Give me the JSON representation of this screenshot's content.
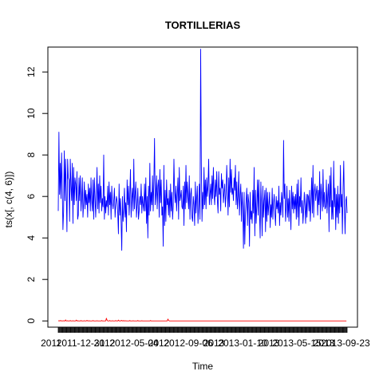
{
  "chart_data": {
    "type": "line",
    "title": "TORTILLERIAS",
    "xlabel": "Time",
    "ylabel": "ts(x[, c(4, 6)])",
    "ylim": [
      -0.3,
      13.2
    ],
    "yticks": [
      0,
      2,
      4,
      6,
      8,
      10,
      12
    ],
    "xticklabels": [
      "2011-12-31",
      "2012-05-04",
      "2012-09-06",
      "2013-01-10",
      "2013-05-15",
      "2013-09-23",
      "2011",
      "2012",
      "2012",
      "2013",
      "2013",
      "2013"
    ],
    "grid": false,
    "legend": "none",
    "series": [
      {
        "color": "#0000ff",
        "values": [
          5.3,
          9.1,
          6.1,
          7.6,
          5.9,
          8.1,
          6.4,
          4.4,
          5.3,
          8.2,
          5.8,
          7.8,
          6.2,
          4.3,
          7.8,
          6.9,
          6.8,
          4.8,
          7.8,
          6.5,
          5.8,
          7.6,
          4.7,
          7.4,
          5.6,
          6.9,
          6.6,
          5.8,
          7.2,
          4.9,
          5.1,
          6.9,
          5.8,
          7.0,
          5.3,
          5.9,
          6.9,
          5.0,
          5.7,
          6.7,
          5.4,
          6.3,
          5.6,
          6.1,
          5.0,
          6.6,
          5.7,
          6.4,
          5.3,
          6.9,
          5.8,
          5.3,
          6.8,
          4.9,
          6.9,
          6.0,
          5.0,
          6.0,
          7.4,
          5.4,
          6.6,
          5.2,
          7.0,
          5.7,
          6.5,
          5.3,
          5.9,
          5.5,
          8.0,
          4.9,
          6.0,
          5.2,
          5.8,
          5.5,
          6.5,
          5.1,
          6.7,
          5.6,
          6.2,
          4.9,
          6.5,
          5.7,
          5.4,
          5.8,
          6.4,
          5.0,
          5.6,
          6.0,
          5.8,
          5.2,
          4.2,
          6.6,
          5.1,
          5.9,
          4.8,
          3.4,
          6.0,
          4.8,
          5.4,
          6.4,
          5.0,
          5.7,
          4.3,
          6.8,
          5.6,
          6.5,
          5.1,
          6.0,
          7.3,
          5.0,
          5.9,
          6.4,
          5.3,
          7.8,
          5.4,
          6.1,
          6.7,
          5.0,
          5.6,
          6.4,
          4.9,
          5.3,
          6.0,
          5.6,
          6.6,
          5.2,
          6.0,
          5.6,
          5.3,
          6.6,
          5.3,
          6.9,
          4.7,
          6.0,
          4.0,
          6.5,
          5.1,
          7.6,
          5.3,
          6.2,
          5.6,
          7.0,
          5.3,
          6.7,
          8.8,
          5.6,
          6.1,
          7.0,
          5.4,
          6.5,
          6.8,
          5.0,
          7.3,
          5.7,
          6.8,
          5.1,
          5.5,
          3.6,
          7.5,
          4.6,
          6.3,
          4.8,
          6.8,
          5.6,
          5.9,
          5.1,
          6.3,
          5.0,
          6.6,
          5.3,
          6.2,
          4.9,
          5.6,
          7.8,
          6.2,
          5.7,
          6.5,
          5.3,
          6.1,
          6.9,
          4.9,
          7.4,
          5.8,
          6.0,
          6.3,
          5.5,
          5.4,
          6.5,
          4.6,
          6.7,
          5.4,
          7.5,
          5.7,
          6.7,
          6.0,
          5.4,
          7.0,
          4.9,
          6.1,
          6.4,
          5.0,
          4.8,
          6.0,
          5.6,
          4.6,
          6.7,
          5.2,
          5.9,
          6.5,
          4.7,
          5.5,
          6.6,
          4.9,
          13.1,
          7.6,
          4.8,
          6.2,
          5.4,
          7.4,
          5.6,
          6.8,
          5.4,
          6.9,
          6.0,
          6.5,
          7.8,
          5.6,
          6.1,
          6.6,
          5.6,
          7.0,
          5.9,
          7.4,
          6.1,
          5.6,
          6.8,
          6.0,
          7.2,
          5.8,
          5.2,
          7.2,
          6.1,
          6.4,
          5.3,
          7.1,
          6.4,
          6.8,
          5.7,
          6.2,
          6.6,
          5.5,
          6.1,
          7.5,
          6.4,
          5.1,
          6.9,
          5.5,
          7.8,
          6.2,
          7.3,
          6.1,
          6.4,
          5.8,
          6.9,
          6.3,
          7.5,
          5.6,
          6.7,
          5.4,
          6.0,
          7.2,
          5.1,
          6.1,
          6.6,
          4.8,
          6.2,
          5.5,
          3.5,
          6.2,
          3.7,
          5.2,
          5.8,
          6.4,
          4.6,
          6.1,
          5.7,
          3.6,
          6.2,
          4.9,
          5.3,
          4.7,
          6.3,
          5.2,
          7.4,
          4.1,
          6.3,
          4.7,
          5.6,
          6.8,
          5.1,
          6.8,
          5.2,
          4.0,
          6.7,
          5.6,
          4.1,
          6.5,
          5.0,
          5.8,
          6.3,
          4.3,
          6.4,
          4.8,
          6.2,
          5.1,
          5.6,
          6.2,
          4.5,
          5.6,
          5.0,
          6.4,
          4.9,
          5.7,
          6.1,
          5.2,
          4.6,
          6.0,
          5.4,
          5.8,
          5.2,
          6.5,
          4.6,
          5.7,
          5.1,
          6.2,
          5.8,
          5.0,
          8.7,
          5.9,
          6.6,
          4.8,
          5.5,
          6.5,
          5.0,
          5.9,
          4.8,
          6.3,
          5.4,
          4.4,
          6.5,
          5.4,
          6.2,
          5.2,
          6.0,
          5.4,
          6.1,
          4.9,
          6.6,
          5.0,
          6.8,
          4.6,
          6.0,
          5.5,
          6.9,
          5.2,
          5.8,
          4.7,
          5.3,
          6.2,
          5.5,
          4.7,
          6.1,
          5.0,
          6.1,
          6.0,
          5.3,
          6.3,
          4.8,
          5.7,
          6.9,
          5.2,
          7.5,
          5.0,
          6.2,
          6.6,
          5.8,
          6.2,
          6.5,
          5.1,
          6.3,
          5.6,
          7.2,
          4.9,
          6.6,
          6.1,
          5.3,
          7.3,
          5.5,
          6.2,
          5.4,
          5.5,
          6.8,
          5.2,
          6.0,
          6.6,
          4.3,
          7.0,
          5.5,
          7.4,
          4.9,
          5.8,
          4.9,
          7.7,
          5.5,
          6.4,
          4.4,
          6.1,
          5.0,
          6.5,
          4.7,
          6.1,
          5.2,
          7.5,
          5.5,
          6.1,
          4.2,
          6.4,
          7.7,
          5.5,
          4.2,
          5.8,
          6.0,
          5.2
        ]
      },
      {
        "color": "#ff0000",
        "values": [
          0.0,
          0.01,
          0.0,
          0.02,
          0.0,
          0.01,
          0.0,
          0.0,
          0.01,
          0.0,
          0.0,
          0.05,
          0.0,
          0.0,
          0.01,
          0.0,
          0.0,
          0.0,
          0.02,
          0.0,
          0.0,
          0.0,
          0.01,
          0.0,
          0.0,
          0.0,
          0.0,
          0.04,
          0.0,
          0.01,
          0.0,
          0.0,
          0.0,
          0.0,
          0.02,
          0.0,
          0.0,
          0.0,
          0.0,
          0.01,
          0.0,
          0.0,
          0.0,
          0.03,
          0.0,
          0.0,
          0.01,
          0.0,
          0.0,
          0.0,
          0.0,
          0.0,
          0.02,
          0.0,
          0.0,
          0.0,
          0.0,
          0.0,
          0.01,
          0.0,
          0.0,
          0.0,
          0.0,
          0.0,
          0.0,
          0.02,
          0.0,
          0.0,
          0.0,
          0.0,
          0.0,
          0.0,
          0.13,
          0.03,
          0.0,
          0.0,
          0.0,
          0.02,
          0.0,
          0.0,
          0.0,
          0.01,
          0.0,
          0.0,
          0.0,
          0.0,
          0.02,
          0.0,
          0.0,
          0.0,
          0.04,
          0.0,
          0.0,
          0.01,
          0.0,
          0.03,
          0.0,
          0.0,
          0.02,
          0.0,
          0.0,
          0.01,
          0.0,
          0.0,
          0.0,
          0.0,
          0.0,
          0.02,
          0.0,
          0.0,
          0.0,
          0.0,
          0.01,
          0.0,
          0.0,
          0.0,
          0.0,
          0.0,
          0.0,
          0.02,
          0.0,
          0.0,
          0.0,
          0.0,
          0.0,
          0.01,
          0.0,
          0.0,
          0.0,
          0.0,
          0.0,
          0.0,
          0.0,
          0.0,
          0.0,
          0.0,
          0.0,
          0.0,
          0.02,
          0.0,
          0.0,
          0.0,
          0.0,
          0.0,
          0.0,
          0.0,
          0.0,
          0.0,
          0.0,
          0.0,
          0.0,
          0.0,
          0.0,
          0.0,
          0.0,
          0.0,
          0.0,
          0.0,
          0.0,
          0.0,
          0.0,
          0.0,
          0.0,
          0.0,
          0.09,
          0.03,
          0.0,
          0.0,
          0.0,
          0.0,
          0.0,
          0.0,
          0.0,
          0.0,
          0.0,
          0.0,
          0.0,
          0.0,
          0.0,
          0.0,
          0.0,
          0.0,
          0.0,
          0.0,
          0.0,
          0.0,
          0.0,
          0.0,
          0.0,
          0.0,
          0.0,
          0.0,
          0.0,
          0.0,
          0.0,
          0.0,
          0.0,
          0.0,
          0.0,
          0.0,
          0.0,
          0.0,
          0.0,
          0.0,
          0.0,
          0.0,
          0.0,
          0.0,
          0.0,
          0.0,
          0.0,
          0.0,
          0.0,
          0.0,
          0.0,
          0.0,
          0.0,
          0.0,
          0.0,
          0.0,
          0.0,
          0.0,
          0.0,
          0.0,
          0.0,
          0.0,
          0.0,
          0.0,
          0.0,
          0.0,
          0.0,
          0.0,
          0.0,
          0.0,
          0.0,
          0.0,
          0.0,
          0.0,
          0.0,
          0.0,
          0.0,
          0.0,
          0.0,
          0.0,
          0.0,
          0.0,
          0.0,
          0.0,
          0.0,
          0.0,
          0.0,
          0.0,
          0.0,
          0.0,
          0.0,
          0.0,
          0.0,
          0.0,
          0.0,
          0.0,
          0.0,
          0.0,
          0.0,
          0.0,
          0.0,
          0.0,
          0.0,
          0.0,
          0.0,
          0.0,
          0.0,
          0.0,
          0.0,
          0.0,
          0.0,
          0.0,
          0.0,
          0.0,
          0.0,
          0.0,
          0.0,
          0.0,
          0.0,
          0.0,
          0.0,
          0.0,
          0.0,
          0.0,
          0.0,
          0.0,
          0.0,
          0.0,
          0.0,
          0.0,
          0.0,
          0.0,
          0.0,
          0.0,
          0.0,
          0.0,
          0.0,
          0.0,
          0.0,
          0.0,
          0.0,
          0.0,
          0.0,
          0.0,
          0.0,
          0.0,
          0.0,
          0.0,
          0.0,
          0.0,
          0.0,
          0.0,
          0.0,
          0.0,
          0.0,
          0.0,
          0.0,
          0.0,
          0.0,
          0.0,
          0.0,
          0.0,
          0.0,
          0.0,
          0.0,
          0.0,
          0.0,
          0.0,
          0.0,
          0.0,
          0.0,
          0.0,
          0.0,
          0.0,
          0.0,
          0.0,
          0.0,
          0.0,
          0.0,
          0.0,
          0.0,
          0.0,
          0.0,
          0.0,
          0.0,
          0.0,
          0.0,
          0.0,
          0.0,
          0.0,
          0.0,
          0.0,
          0.0,
          0.0,
          0.0,
          0.0,
          0.0,
          0.0,
          0.0,
          0.0,
          0.0,
          0.0,
          0.0,
          0.0,
          0.0,
          0.0,
          0.0,
          0.0,
          0.0,
          0.0,
          0.0,
          0.0,
          0.0,
          0.0,
          0.0,
          0.0,
          0.0,
          0.0,
          0.0,
          0.0,
          0.0,
          0.0,
          0.0,
          0.0,
          0.0,
          0.0,
          0.0,
          0.0,
          0.0,
          0.0,
          0.0,
          0.0,
          0.0,
          0.0,
          0.0,
          0.0,
          0.0,
          0.0,
          0.0,
          0.0,
          0.0,
          0.0,
          0.0,
          0.0,
          0.0,
          0.0,
          0.0,
          0.0,
          0.0,
          0.0,
          0.0,
          0.0,
          0.0,
          0.0,
          0.0,
          0.0,
          0.0,
          0.0,
          0.0,
          0.0,
          0.0,
          0.0,
          0.0,
          0.0,
          0.0,
          0.0,
          0.0,
          0.0
        ]
      }
    ]
  }
}
